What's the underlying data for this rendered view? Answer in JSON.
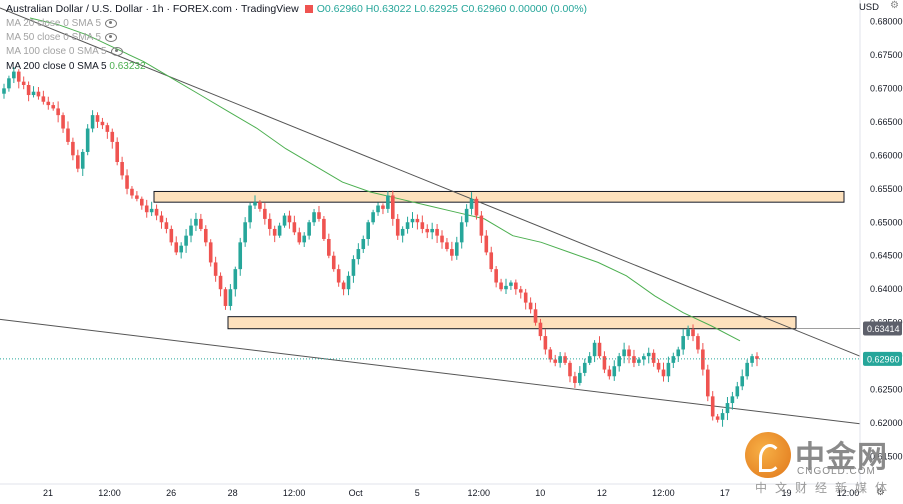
{
  "header": {
    "symbol": "Australian Dollar / U.S. Dollar · 1h · FOREX.com · TradingView",
    "ohlc": "O0.62960 H0.63022 L0.62925 C0.62960 0.00000 (0.00%)"
  },
  "legend": [
    {
      "label": "MA 20 close 0 SMA 5",
      "value": ""
    },
    {
      "label": "MA 50 close 0 SMA 5",
      "value": ""
    },
    {
      "label": "MA 100 close 0 SMA 5",
      "value": ""
    },
    {
      "label": "MA 200 close 0 SMA 5",
      "value": "0.63232"
    }
  ],
  "currency": "USD",
  "watermark": {
    "cn": "中金网",
    "en": "CNGOLD.COM",
    "sub": "中文财经新媒体"
  },
  "colors": {
    "up": "#26a69a",
    "down": "#ef5350",
    "ma200": "#4caf50",
    "zone_fill": "#fde1bd",
    "zone_stroke": "#131722",
    "trend": "#555555"
  },
  "chart_data": {
    "type": "candlestick",
    "y_ticks": [
      "0.68000",
      "0.67500",
      "0.67000",
      "0.66500",
      "0.66000",
      "0.65500",
      "0.65000",
      "0.64500",
      "0.64000",
      "0.63500",
      "0.63000",
      "0.62500",
      "0.62000",
      "0.61500"
    ],
    "x_ticks": [
      "21",
      "12:00",
      "26",
      "28",
      "12:00",
      "Oct",
      "5",
      "12:00",
      "10",
      "12",
      "12:00",
      "17",
      "19",
      "12:00"
    ],
    "price_labels": [
      {
        "value": "0.63414",
        "kind": "level"
      },
      {
        "value": "0.62960",
        "kind": "last"
      }
    ],
    "zones": [
      {
        "name": "resistance-zone",
        "price_from": 0.653,
        "price_to": 0.6546
      },
      {
        "name": "support-zone",
        "price_from": 0.6341,
        "price_to": 0.6359
      }
    ],
    "trendlines": [
      {
        "name": "upper-trendline",
        "from": {
          "x": 0,
          "y": 0.682
        },
        "to": {
          "x": 1,
          "y": 0.63
        }
      },
      {
        "name": "lower-trendline",
        "from": {
          "x": 0,
          "y": 0.6355
        },
        "to": {
          "x": 1,
          "y": 0.6199
        }
      }
    ],
    "series": [
      {
        "name": "AUD/USD",
        "close": [
          0.67,
          0.6715,
          0.6725,
          0.671,
          0.6705,
          0.669,
          0.6695,
          0.6688,
          0.668,
          0.6675,
          0.667,
          0.666,
          0.664,
          0.662,
          0.66,
          0.658,
          0.6605,
          0.664,
          0.666,
          0.665,
          0.6645,
          0.6635,
          0.662,
          0.659,
          0.657,
          0.655,
          0.654,
          0.6535,
          0.6525,
          0.6515,
          0.652,
          0.651,
          0.65,
          0.649,
          0.647,
          0.6455,
          0.6465,
          0.648,
          0.6495,
          0.6505,
          0.649,
          0.647,
          0.644,
          0.642,
          0.64,
          0.6375,
          0.64,
          0.643,
          0.647,
          0.65,
          0.6525,
          0.653,
          0.652,
          0.6505,
          0.649,
          0.648,
          0.6495,
          0.651,
          0.65,
          0.6485,
          0.647,
          0.648,
          0.65,
          0.6515,
          0.6505,
          0.6475,
          0.645,
          0.643,
          0.641,
          0.64,
          0.642,
          0.6445,
          0.646,
          0.6475,
          0.65,
          0.6515,
          0.6525,
          0.652,
          0.654,
          0.6505,
          0.648,
          0.649,
          0.65,
          0.6505,
          0.65,
          0.649,
          0.6485,
          0.649,
          0.648,
          0.647,
          0.646,
          0.645,
          0.647,
          0.65,
          0.652,
          0.6535,
          0.651,
          0.648,
          0.6455,
          0.643,
          0.641,
          0.64,
          0.6405,
          0.641,
          0.64,
          0.6395,
          0.638,
          0.637,
          0.635,
          0.633,
          0.631,
          0.6295,
          0.629,
          0.63,
          0.629,
          0.627,
          0.626,
          0.6275,
          0.629,
          0.63,
          0.632,
          0.63,
          0.628,
          0.627,
          0.6285,
          0.63,
          0.631,
          0.63,
          0.629,
          0.6295,
          0.63,
          0.6305,
          0.629,
          0.628,
          0.627,
          0.629,
          0.63,
          0.631,
          0.633,
          0.634,
          0.633,
          0.631,
          0.628,
          0.624,
          0.621,
          0.6205,
          0.6215,
          0.623,
          0.624,
          0.6255,
          0.627,
          0.629,
          0.63,
          0.6296
        ]
      },
      {
        "name": "MA 200",
        "close": [
          0.6805,
          0.6795,
          0.678,
          0.676,
          0.674,
          0.6715,
          0.669,
          0.6665,
          0.664,
          0.661,
          0.6585,
          0.656,
          0.6545,
          0.6535,
          0.6525,
          0.6515,
          0.6505,
          0.648,
          0.647,
          0.6455,
          0.644,
          0.642,
          0.639,
          0.6365,
          0.6345,
          0.6323
        ]
      }
    ]
  }
}
